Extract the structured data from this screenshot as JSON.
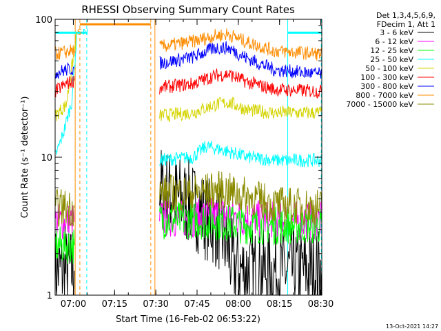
{
  "chart_data": {
    "type": "line",
    "title": "RHESSI Observing Summary Count Rates",
    "xlabel": "Start Time (16-Feb-02 06:53:22)",
    "ylabel": "Count Rate (s⁻¹ detector⁻¹)",
    "yscale": "log",
    "ylim": [
      1,
      100
    ],
    "xlim_minutes": [
      0,
      97
    ],
    "xticks": [
      {
        "label": "07:00",
        "minute": 6.63
      },
      {
        "label": "07:15",
        "minute": 21.63
      },
      {
        "label": "07:30",
        "minute": 36.63
      },
      {
        "label": "07:45",
        "minute": 51.63
      },
      {
        "label": "08:00",
        "minute": 66.63
      },
      {
        "label": "08:15",
        "minute": 81.63
      },
      {
        "label": "08:30",
        "minute": 96.63
      }
    ],
    "yticks": [
      {
        "label": "1",
        "value": 1
      },
      {
        "label": "10",
        "value": 10
      },
      {
        "label": "100",
        "value": 100
      }
    ],
    "legend": {
      "position": "right",
      "header": [
        "Det 1,3,4,5,6,9,",
        "FDecim 1, Att 1"
      ],
      "entries": [
        "3 - 6 keV",
        "6 - 12 keV",
        "12 - 25 keV",
        "25 - 50 keV",
        "50 - 100 keV",
        "100 - 300 keV",
        "300 - 800 keV",
        "800 - 7000 keV",
        "7000 - 15000 keV"
      ]
    },
    "series": [
      {
        "name": "3 - 6 keV",
        "color": "#000000",
        "x": [
          0,
          7,
          20,
          38,
          50,
          60,
          65,
          70,
          80,
          97
        ],
        "y": [
          1.5,
          1.5,
          null,
          6.0,
          4.5,
          3.0,
          1.6,
          1.5,
          1.5,
          1.5
        ]
      },
      {
        "name": "6 - 12 keV",
        "color": "#ff00ff",
        "x": [
          0,
          7,
          20,
          38,
          50,
          60,
          70,
          80,
          97
        ],
        "y": [
          3.4,
          3.4,
          null,
          3.6,
          3.6,
          3.8,
          3.6,
          3.5,
          3.5
        ]
      },
      {
        "name": "12 - 25 keV",
        "color": "#00ff00",
        "x": [
          0,
          7,
          20,
          38,
          50,
          60,
          70,
          80,
          97
        ],
        "y": [
          2.3,
          2.3,
          null,
          3.5,
          3.5,
          3.4,
          3.2,
          3.2,
          3.2
        ]
      },
      {
        "name": "25 - 50 keV",
        "color": "#00ffff",
        "x": [
          0,
          3,
          6,
          8,
          20,
          38,
          50,
          55,
          63,
          70,
          80,
          97
        ],
        "y": [
          10,
          15,
          25,
          80,
          null,
          9.5,
          10,
          12,
          11,
          10,
          9.5,
          9.5
        ]
      },
      {
        "name": "50 - 100 keV",
        "color": "#d4d400",
        "x": [
          0,
          4,
          8,
          20,
          38,
          50,
          58,
          63,
          70,
          80,
          97
        ],
        "y": [
          20,
          24,
          80,
          null,
          20,
          21,
          24,
          25,
          22,
          21,
          21
        ]
      },
      {
        "name": "100 - 300 keV",
        "color": "#ff0000",
        "x": [
          0,
          4,
          7,
          20,
          38,
          50,
          58,
          63,
          70,
          80,
          97
        ],
        "y": [
          30,
          34,
          36,
          null,
          32,
          34,
          39,
          40,
          35,
          31,
          30
        ]
      },
      {
        "name": "300 - 800 keV",
        "color": "#0000ff",
        "x": [
          0,
          4,
          7,
          20,
          38,
          50,
          58,
          63,
          70,
          80,
          97
        ],
        "y": [
          41,
          43,
          44,
          null,
          48,
          53,
          62,
          62,
          52,
          43,
          40
        ]
      },
      {
        "name": "800 - 7000 keV",
        "color": "#ff8c00",
        "x": [
          0,
          4,
          7,
          20,
          38,
          50,
          58,
          63,
          70,
          80,
          97
        ],
        "y": [
          56,
          58,
          60,
          null,
          63,
          69,
          76,
          78,
          68,
          59,
          56
        ]
      },
      {
        "name": "7000 - 15000 keV",
        "color": "#8b8b00",
        "x": [
          0,
          7,
          20,
          38,
          50,
          60,
          70,
          80,
          97
        ],
        "y": [
          4.3,
          4.3,
          null,
          5.5,
          5.5,
          5.8,
          5.2,
          4.5,
          4.3
        ]
      }
    ],
    "annotations": [
      {
        "label": "S",
        "color": "#ff8c00",
        "x_minute": 7.5
      },
      {
        "label": "N",
        "color": "#00ffff",
        "x_minute": 9.5
      }
    ],
    "vertical_markers": [
      {
        "color": "#ff8c00",
        "style": "solid",
        "x_minute": 7.3
      },
      {
        "color": "#ff8c00",
        "style": "dashed",
        "x_minute": 9.0
      },
      {
        "color": "#00ffff",
        "style": "dashed",
        "x_minute": 11.5
      },
      {
        "color": "#ff8c00",
        "style": "dashed",
        "x_minute": 34.8
      },
      {
        "color": "#ff8c00",
        "style": "solid",
        "x_minute": 36.3
      },
      {
        "color": "#00ffff",
        "style": "solid",
        "x_minute": 84.6
      },
      {
        "color": "#00ffff",
        "style": "dashed",
        "x_minute": 96.8
      }
    ],
    "horizontal_bars": [
      {
        "color": "#ff8c00",
        "x_start_minute": 9.0,
        "x_end_minute": 34.8,
        "y_value": 92
      },
      {
        "color": "#00ffff",
        "x_start_minute": 0.2,
        "x_end_minute": 11.5,
        "y_value": 80
      },
      {
        "color": "#00ffff",
        "x_start_minute": 84.6,
        "x_end_minute": 96.8,
        "y_value": 80
      }
    ]
  },
  "footer": {
    "timestamp": "13-Oct-2021 14:27"
  }
}
